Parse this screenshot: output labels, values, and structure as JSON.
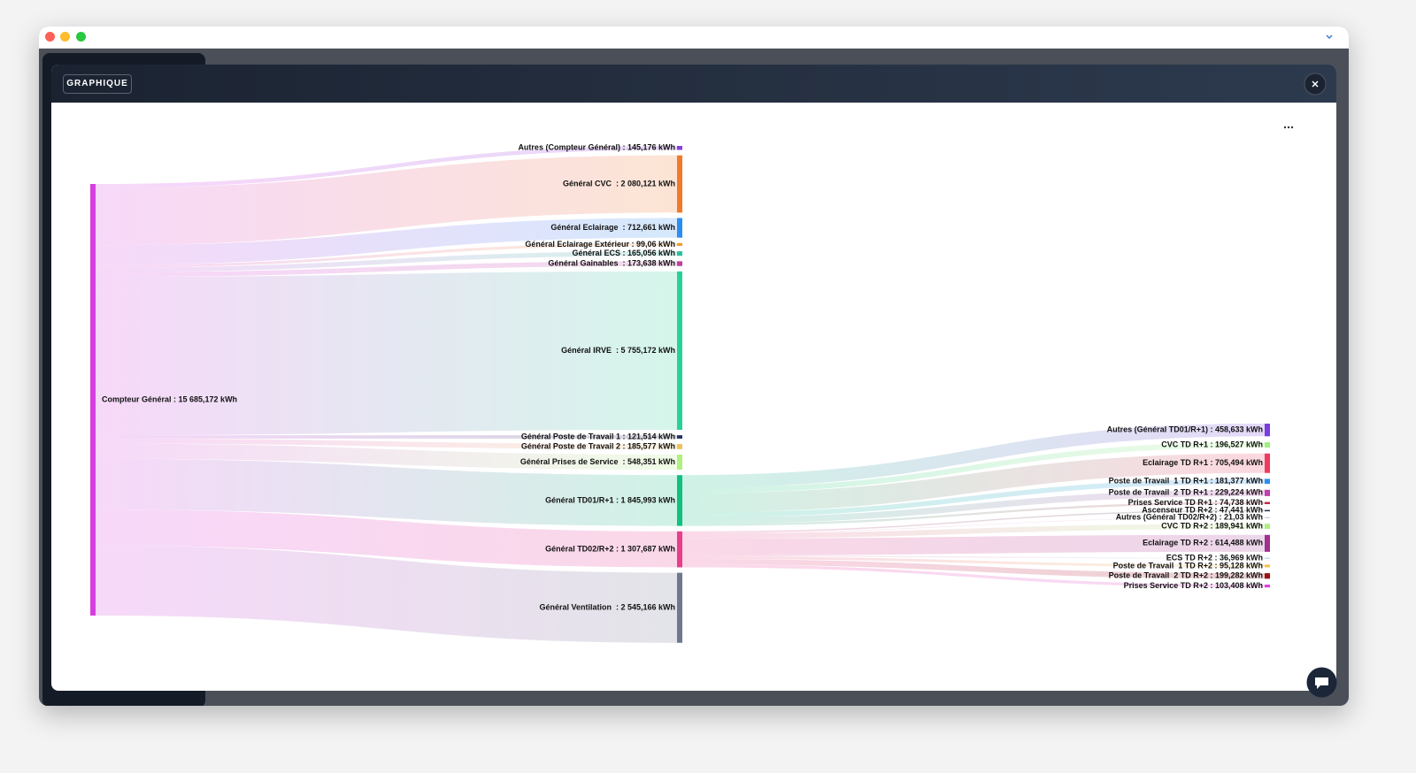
{
  "header": {
    "button": "GRAPHIQUE"
  },
  "chart_data": {
    "type": "sankey",
    "unit": "kWh",
    "nodes": [
      {
        "label": "Compteur Général : 15 685,172 kWh",
        "value": 15685.172,
        "color": "#d63ee0"
      },
      {
        "label": "Autres (Compteur Général) : 145,176 kWh",
        "value": 145.176,
        "parent": 0,
        "color": "#8b3ee0"
      },
      {
        "label": "Général CVC  : 2 080,121 kWh",
        "value": 2080.121,
        "parent": 0,
        "color": "#f07a2a"
      },
      {
        "label": "Général Eclairage  : 712,661 kWh",
        "value": 712.661,
        "parent": 0,
        "color": "#2a8ef0"
      },
      {
        "label": "Général Eclairage Extérieur : 99,06 kWh",
        "value": 99.06,
        "parent": 0,
        "color": "#f09a2a"
      },
      {
        "label": "Général ECS : 165,056 kWh",
        "value": 165.056,
        "parent": 0,
        "color": "#2ac0a0"
      },
      {
        "label": "Général Gainables  : 173,638 kWh",
        "value": 173.638,
        "parent": 0,
        "color": "#c040a0"
      },
      {
        "label": "Général IRVE  : 5 755,172 kWh",
        "value": 5755.172,
        "parent": 0,
        "color": "#2ad09a"
      },
      {
        "label": "Général Poste de Travail 1 : 121,514 kWh",
        "value": 121.514,
        "parent": 0,
        "color": "#203060"
      },
      {
        "label": "Général Poste de Travail 2 : 185,577 kWh",
        "value": 185.577,
        "parent": 0,
        "color": "#f0c060"
      },
      {
        "label": "Général Prises de Service  : 548,351 kWh",
        "value": 548.351,
        "parent": 0,
        "color": "#b0f080"
      },
      {
        "label": "Général TD01/R+1 : 1 845,993 kWh",
        "value": 1845.993,
        "parent": 0,
        "color": "#10c080"
      },
      {
        "label": "Général TD02/R+2 : 1 307,687 kWh",
        "value": 1307.687,
        "parent": 0,
        "color": "#e83e8c"
      },
      {
        "label": "Général Ventilation  : 2 545,166 kWh",
        "value": 2545.166,
        "parent": 0,
        "color": "#707890"
      },
      {
        "label": "Autres (Général TD01/R+1) : 458,633 kWh",
        "value": 458.633,
        "parent": 11,
        "color": "#7a3ee0"
      },
      {
        "label": "CVC TD R+1 : 196,527 kWh",
        "value": 196.527,
        "parent": 11,
        "color": "#a0f080"
      },
      {
        "label": "Eclairage TD R+1 : 705,494 kWh",
        "value": 705.494,
        "parent": 11,
        "color": "#f03a60"
      },
      {
        "label": "Poste de Travail  1 TD R+1 : 181,377 kWh",
        "value": 181.377,
        "parent": 11,
        "color": "#2a8ef0"
      },
      {
        "label": "Poste de Travail  2 TD R+1 : 229,224 kWh",
        "value": 229.224,
        "parent": 11,
        "color": "#c040b0"
      },
      {
        "label": "Prises Service TD R+1 : 74,738 kWh",
        "value": 74.738,
        "parent": 11,
        "color": "#c02040"
      },
      {
        "label": "Ascenseur TD R+2 : 47,441 kWh",
        "value": 47.441,
        "parent": 12,
        "color": "#203040"
      },
      {
        "label": "Autres (Général TD02/R+2) : 21,03 kWh",
        "value": 21.03,
        "parent": 12,
        "color": "#c0c0e0"
      },
      {
        "label": "CVC TD R+2 : 189,941 kWh",
        "value": 189.941,
        "parent": 12,
        "color": "#b0f080"
      },
      {
        "label": "Eclairage TD R+2 : 614,488 kWh",
        "value": 614.488,
        "parent": 12,
        "color": "#a03090"
      },
      {
        "label": "ECS TD R+2 : 36,969 kWh",
        "value": 36.969,
        "parent": 12,
        "color": "#a0e0f0"
      },
      {
        "label": "Poste de Travail  1 TD R+2 : 95,128 kWh",
        "value": 95.128,
        "parent": 12,
        "color": "#f0c040"
      },
      {
        "label": "Poste de Travail  2 TD R+2 : 199,282 kWh",
        "value": 199.282,
        "parent": 12,
        "color": "#a01010"
      },
      {
        "label": "Prises Service TD R+2 : 103,408 kWh",
        "value": 103.408,
        "parent": 12,
        "color": "#e040e0"
      }
    ]
  }
}
